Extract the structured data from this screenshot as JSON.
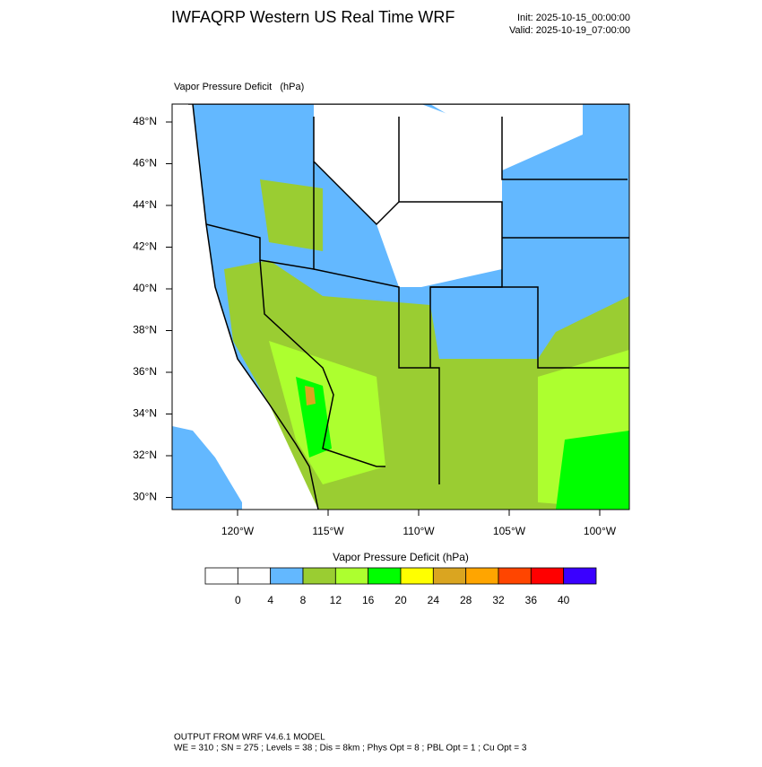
{
  "header": {
    "title": "IWFAQRP Western US Real Time WRF",
    "init": "Init: 2025-10-15_00:00:00",
    "valid": "Valid: 2025-10-19_07:00:00"
  },
  "map": {
    "title": "Vapor Pressure Deficit   (hPa)",
    "lat_labels": [
      "48°N",
      "46°N",
      "44°N",
      "42°N",
      "40°N",
      "38°N",
      "36°N",
      "34°N",
      "32°N",
      "30°N"
    ],
    "lon_labels": [
      "120°W",
      "115°W",
      "110°W",
      "105°W",
      "100°W"
    ]
  },
  "colorbar": {
    "title": "Vapor Pressure Deficit  (hPa)",
    "levels": [
      0,
      4,
      8,
      12,
      16,
      20,
      24,
      28,
      32,
      36,
      40
    ],
    "colors": [
      "#ffffff",
      "#ffffff",
      "#63b8ff",
      "#9acd32",
      "#adff2f",
      "#00ff00",
      "#ffff00",
      "#daa520",
      "#ffa500",
      "#ff4500",
      "#ff0000",
      "#3a00ff"
    ]
  },
  "footer": {
    "line1": "OUTPUT FROM WRF V4.6.1 MODEL",
    "line2": "WE = 310 ; SN = 275 ; Levels = 38 ; Dis = 8km ; Phys Opt = 8 ; PBL Opt = 1 ; Cu Opt = 3"
  }
}
